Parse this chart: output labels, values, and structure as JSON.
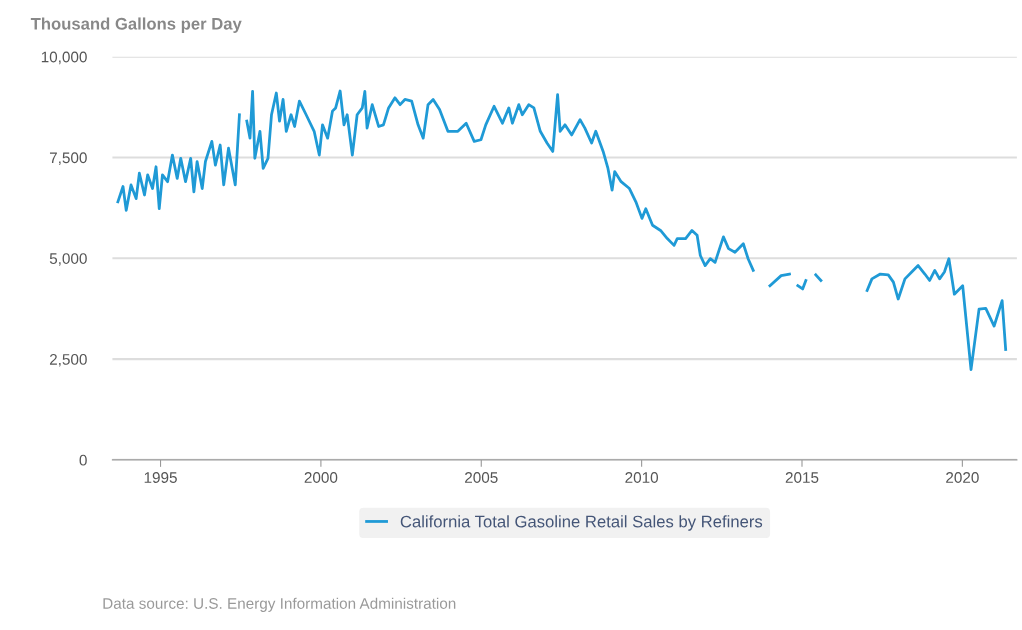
{
  "chart_data": {
    "type": "line",
    "ylabel": "Thousand Gallons per Day",
    "series": [
      {
        "name": "California Total Gasoline Retail Sales by Refiners",
        "color": "#1f9ad6",
        "x": [
          1993.67,
          1993.83,
          1993.93,
          1994.08,
          1994.24,
          1994.34,
          1994.5,
          1994.6,
          1994.75,
          1994.86,
          1994.96,
          1995.06,
          1995.22,
          1995.37,
          1995.52,
          1995.63,
          1995.78,
          1995.94,
          1996.04,
          1996.14,
          1996.3,
          1996.4,
          1996.6,
          1996.71,
          1996.86,
          1996.97,
          1997.12,
          1997.33,
          1997.46,
          1997.6,
          1997.69,
          1997.79,
          1997.87,
          1997.94,
          1998.1,
          1998.2,
          1998.35,
          1998.46,
          1998.61,
          1998.71,
          1998.82,
          1998.92,
          1999.07,
          1999.18,
          1999.33,
          1999.54,
          1999.79,
          1999.95,
          2000.05,
          2000.21,
          2000.36,
          2000.46,
          2000.6,
          2000.72,
          2000.82,
          2000.98,
          2001.13,
          2001.29,
          2001.37,
          2001.44,
          2001.6,
          2001.8,
          2001.95,
          2002.11,
          2002.31,
          2002.47,
          2002.62,
          2002.83,
          2003.03,
          2003.19,
          2003.34,
          2003.5,
          2003.7,
          2003.96,
          2004.27,
          2004.53,
          2004.78,
          2004.99,
          2005.14,
          2005.4,
          2005.66,
          2005.86,
          2005.97,
          2006.17,
          2006.28,
          2006.48,
          2006.64,
          2006.84,
          2007.05,
          2007.23,
          2007.38,
          2007.46,
          2007.61,
          2007.82,
          2008.08,
          2008.23,
          2008.44,
          2008.57,
          2008.8,
          2008.95,
          2009.08,
          2009.16,
          2009.36,
          2009.62,
          2009.82,
          2010.01,
          2010.13,
          2010.34,
          2010.59,
          2010.8,
          2011.01,
          2011.11,
          2011.37,
          2011.57,
          2011.73,
          2011.83,
          2011.98,
          2012.14,
          2012.29,
          2012.55,
          2012.71,
          2012.91,
          2013.17,
          2013.32,
          2013.48,
          2013.75,
          2014.0,
          2014.35,
          2014.61,
          2014.75,
          2014.87,
          2015.02,
          2015.12,
          2015.3,
          2015.43,
          2015.59,
          2016.3,
          2017.03,
          2017.18,
          2017.44,
          2017.69,
          2017.85,
          2018.0,
          2018.21,
          2018.42,
          2018.62,
          2018.83,
          2018.98,
          2019.14,
          2019.29,
          2019.44,
          2019.58,
          2019.75,
          2020.01,
          2020.27,
          2020.52,
          2020.73,
          2020.99,
          2021.24,
          2021.35
        ],
        "values": [
          6400,
          6780,
          6190,
          6820,
          6480,
          7110,
          6570,
          7070,
          6730,
          7270,
          6230,
          7070,
          6900,
          7560,
          6980,
          7480,
          6900,
          7480,
          6650,
          7400,
          6730,
          7400,
          7900,
          7310,
          7810,
          6820,
          7730,
          6820,
          8560,
          null,
          8400,
          7980,
          9140,
          7480,
          8150,
          7230,
          7480,
          8560,
          9100,
          8400,
          8940,
          8150,
          8560,
          8270,
          8900,
          8560,
          8150,
          7560,
          8310,
          7980,
          8650,
          8730,
          9150,
          8310,
          8560,
          7560,
          8560,
          8730,
          9140,
          8230,
          8810,
          8270,
          8310,
          8730,
          8980,
          8810,
          8940,
          8900,
          8310,
          7980,
          8810,
          8940,
          8690,
          8150,
          8150,
          8350,
          7900,
          7940,
          8310,
          8770,
          8350,
          8730,
          8350,
          8810,
          8560,
          8810,
          8730,
          8150,
          7860,
          7650,
          9060,
          8150,
          8310,
          8060,
          8440,
          8230,
          7860,
          8150,
          7650,
          7230,
          6690,
          7150,
          6900,
          6730,
          6400,
          5990,
          6230,
          5820,
          5690,
          5490,
          5320,
          5490,
          5490,
          5690,
          5570,
          5070,
          4820,
          4990,
          4900,
          5530,
          5240,
          5150,
          5360,
          4990,
          4700,
          null,
          4320,
          4570,
          4610,
          null,
          4320,
          4240,
          4450,
          null,
          4590,
          4450,
          null,
          4200,
          4490,
          4610,
          4590,
          4410,
          3990,
          4490,
          4660,
          4820,
          4610,
          4450,
          4700,
          4490,
          4660,
          4990,
          4110,
          4320,
          2240,
          3740,
          3760,
          3320,
          3950,
          2740
        ]
      }
    ],
    "xlim": [
      1993.5,
      2021.7
    ],
    "xticks": [
      1995,
      2000,
      2005,
      2010,
      2015,
      2020
    ],
    "ylim": [
      0,
      10000
    ],
    "yticks": [
      0,
      {
        "value": 2500,
        "label": "2,500"
      },
      {
        "value": 5000,
        "label": "5,000"
      },
      {
        "value": 7500,
        "label": "7,500"
      },
      {
        "value": 10000,
        "label": "10,000"
      }
    ],
    "grid": "y",
    "legend": "bottom",
    "marker": "none",
    "line_style": "solid",
    "annotations": [
      "Data source: U.S. Energy Information Administration"
    ]
  }
}
